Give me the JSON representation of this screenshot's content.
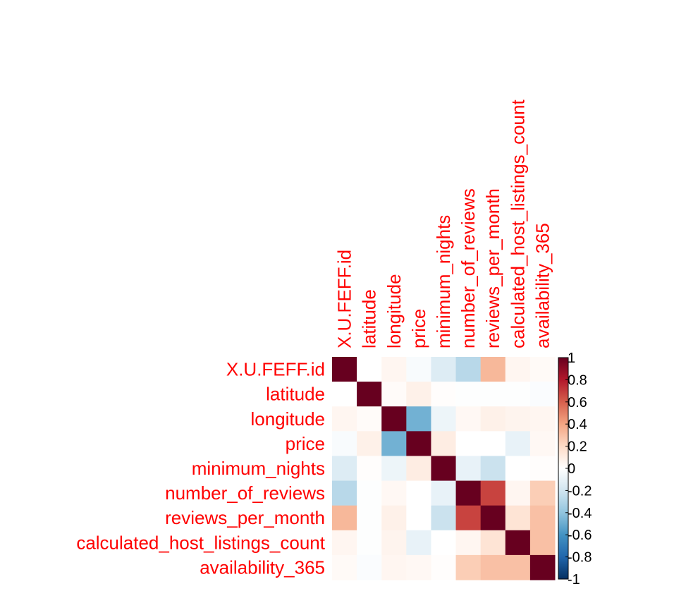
{
  "chart_data": {
    "type": "heatmap",
    "title": "",
    "xlabel": "",
    "ylabel": "",
    "variables": [
      "X.U.FEFF.id",
      "latitude",
      "longitude",
      "price",
      "minimum_nights",
      "number_of_reviews",
      "reviews_per_month",
      "calculated_host_listings_count",
      "availability_365"
    ],
    "matrix": [
      [
        1.0,
        0.0,
        0.05,
        -0.03,
        -0.15,
        -0.28,
        0.33,
        0.05,
        0.03
      ],
      [
        0.0,
        1.0,
        0.02,
        0.08,
        0.01,
        -0.01,
        -0.01,
        -0.01,
        -0.02
      ],
      [
        0.05,
        0.02,
        1.0,
        -0.48,
        -0.08,
        0.04,
        0.08,
        0.06,
        0.05
      ],
      [
        -0.03,
        0.08,
        -0.48,
        1.0,
        0.1,
        0.0,
        0.0,
        -0.1,
        0.04
      ],
      [
        -0.15,
        0.01,
        -0.08,
        0.1,
        1.0,
        -0.1,
        -0.22,
        0.0,
        0.01
      ],
      [
        -0.28,
        -0.01,
        0.04,
        0.0,
        -0.1,
        1.0,
        0.68,
        0.05,
        0.25
      ],
      [
        0.33,
        -0.01,
        0.08,
        0.0,
        -0.22,
        0.68,
        1.0,
        0.15,
        0.3
      ],
      [
        0.05,
        -0.01,
        0.06,
        -0.1,
        0.0,
        0.05,
        0.15,
        1.0,
        0.3
      ],
      [
        0.03,
        -0.02,
        0.05,
        0.04,
        0.01,
        0.25,
        0.3,
        0.3,
        1.0
      ]
    ],
    "color_scale": {
      "min": -1,
      "max": 1,
      "ticks": [
        "1",
        "0.8",
        "0.6",
        "0.4",
        "0.2",
        "0",
        "-0.2",
        "-0.4",
        "-0.6",
        "-0.8",
        "-1"
      ],
      "tick_values": [
        1,
        0.8,
        0.6,
        0.4,
        0.2,
        0,
        -0.2,
        -0.4,
        -0.6,
        -0.8,
        -1
      ],
      "colors": [
        "#67001f",
        "#b2182b",
        "#d6604d",
        "#f4a582",
        "#fddbc7",
        "#ffffff",
        "#d1e5f0",
        "#92c5de",
        "#4393c3",
        "#2166ac",
        "#053061"
      ]
    },
    "label_color": "#ff0000",
    "legend_position": "right",
    "grid": false
  }
}
